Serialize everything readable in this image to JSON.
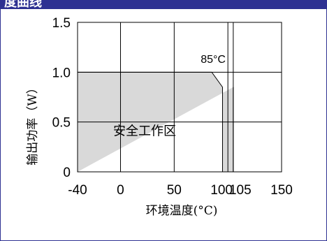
{
  "header": {
    "title": "度曲线"
  },
  "chart_data": {
    "type": "area",
    "title": "",
    "xlabel": "环境温度(°C)",
    "ylabel": "输出功率（W）",
    "xlim": [
      -40,
      150
    ],
    "ylim": [
      0,
      1.5
    ],
    "xticks": [
      {
        "value": -40,
        "label": "-40"
      },
      {
        "value": 0,
        "label": "0"
      },
      {
        "value": 50,
        "label": "50"
      },
      {
        "value": 100,
        "label": "100"
      },
      {
        "value": 105,
        "label": "105"
      },
      {
        "value": 150,
        "label": "150"
      }
    ],
    "yticks": [
      {
        "value": 0,
        "label": "0"
      },
      {
        "value": 0.5,
        "label": "0.5"
      },
      {
        "value": 1.0,
        "label": "1.0"
      },
      {
        "value": 1.5,
        "label": "1.5"
      }
    ],
    "grid": true,
    "series": [
      {
        "name": "安全工作区",
        "x": [
          -40,
          85,
          95,
          95,
          105,
          105
        ],
        "y": [
          1.0,
          1.0,
          0.85,
          0,
          0,
          0.85
        ]
      }
    ],
    "annotations": [
      {
        "text": "85°C",
        "x": 85,
        "y": 1.05
      }
    ],
    "colors": {
      "fill": "#d9d9d9",
      "grid": "#000000",
      "header": "#2e3192"
    }
  }
}
